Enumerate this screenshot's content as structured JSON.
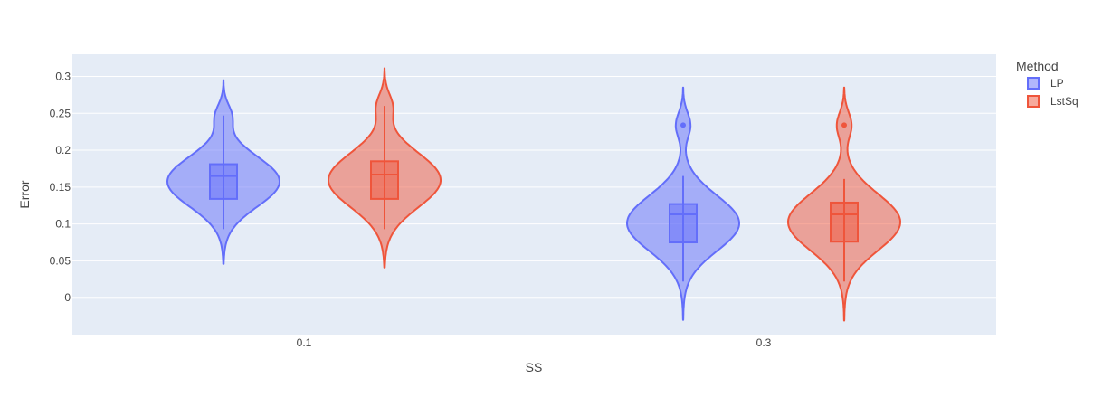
{
  "chart_data": {
    "type": "violin",
    "xlabel": "SS",
    "ylabel": "Error",
    "categories": [
      "0.1",
      "0.3"
    ],
    "ylim": [
      -0.05,
      0.33
    ],
    "yticks": [
      0,
      0.05,
      0.1,
      0.15,
      0.2,
      0.25,
      0.3
    ],
    "ytick_labels": [
      "0",
      "0.05",
      "0.1",
      "0.15",
      "0.2",
      "0.25",
      "0.3"
    ],
    "grid": true,
    "legend": {
      "title": "Method",
      "placement": "top-right"
    },
    "series": [
      {
        "name": "LP",
        "color": "#636efa",
        "groups": [
          {
            "category": "0.1",
            "kde_min": 0.046,
            "kde_max": 0.295,
            "whisker_low": 0.093,
            "q1": 0.134,
            "median": 0.165,
            "q3": 0.181,
            "whisker_high": 0.247,
            "outliers": []
          },
          {
            "category": "0.3",
            "kde_min": -0.03,
            "kde_max": 0.285,
            "whisker_low": 0.022,
            "q1": 0.075,
            "median": 0.113,
            "q3": 0.127,
            "whisker_high": 0.165,
            "outliers": [
              0.234
            ]
          }
        ]
      },
      {
        "name": "LstSq",
        "color": "#ef553b",
        "groups": [
          {
            "category": "0.1",
            "kde_min": 0.041,
            "kde_max": 0.311,
            "whisker_low": 0.093,
            "q1": 0.134,
            "median": 0.167,
            "q3": 0.185,
            "whisker_high": 0.26,
            "outliers": []
          },
          {
            "category": "0.3",
            "kde_min": -0.031,
            "kde_max": 0.285,
            "whisker_low": 0.022,
            "q1": 0.076,
            "median": 0.113,
            "q3": 0.129,
            "whisker_high": 0.161,
            "outliers": [
              0.234
            ]
          }
        ]
      }
    ]
  }
}
